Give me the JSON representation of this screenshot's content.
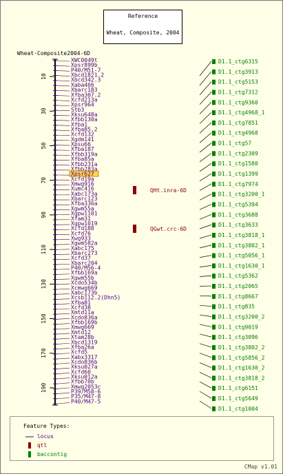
{
  "reference": {
    "label": "Reference",
    "name": "Wheat, Composite, 2004"
  },
  "map_title": "Wheat-Composite2004-6D",
  "chart_data": {
    "type": "comparative-map",
    "axis_ticks": [
      10,
      30,
      50,
      70,
      90,
      110,
      130,
      150,
      170,
      190
    ],
    "axis_range": [
      0,
      200
    ],
    "loci": [
      "XWC0049t",
      "Xpsr899b",
      "P40/M51-7",
      "Xbcd1821.2",
      "Xbcd342.3",
      "Xaba466",
      "Xbarc183",
      "Xfba307.2",
      "Xcfd213a",
      "Xpsr964",
      "Stb3",
      "Xksu648a",
      "Xfbb130a",
      "Xfba1",
      "Xfba85.2",
      "Xcfd132",
      "Xgdm141",
      "Xpsu66",
      "Xfba187",
      "Xfbb319a",
      "Xfba85a",
      "Xfbb231a",
      "Xfbb283a",
      "Xpsr627",
      "Xcfd19a",
      "Xmwg916",
      "Xumc416",
      "Xabc173a",
      "Xbarc123",
      "Xfba336a",
      "Xgwm55a",
      "Xgpw1101",
      "Xfam31",
      "Xgpw1019",
      "Xcfd188",
      "Xcfd76",
      "Xwg933",
      "Xgwm582a",
      "Xabc175",
      "Xbarc273",
      "Xcfd37",
      "Xbarc204",
      "P40/M56-4",
      "Xfbb169a",
      "Xgwm55b",
      "Xcdo534b",
      "Xcmwg669",
      "Xabc173b",
      "Xcsb112.2(Dhn5)",
      "Xfba81",
      "Xcfd38",
      "Xmtd11a",
      "Xcdo836a",
      "Xfbb169b",
      "Xmwg669",
      "Xmtd12",
      "Xtam28b",
      "Xbcd1319",
      "Xfba26a",
      "Xcfd5",
      "Xabx3317",
      "Xcdo836b",
      "Xksu027a",
      "Xcfd60",
      "Xksu012a",
      "Xfbb70b",
      "Xmwg2053c",
      "P39/M58-6",
      "P35/M47-8",
      "P40/M47-5"
    ],
    "highlighted_locus": "Xpsr627",
    "qtls": [
      {
        "name": "QHt.inra-6D"
      },
      {
        "name": "QGwt.crc-6D"
      }
    ],
    "contigs": [
      "D1.1_ctg6315",
      "D1.1_ctg3913",
      "D1.1_ctg5153",
      "D1.1_ctg7312",
      "D1.1_ctg9360",
      "D1.1_ctg4968_1",
      "D1.1_ctg7851",
      "D1.1_ctg4968",
      "D1.1_ctg57",
      "D1.1_ctg2309",
      "D1.1_ctg1580",
      "D1.1_ctg1399",
      "D1.1_ctg7974",
      "D1.1_ctg3200_1",
      "D1.1_ctg5394",
      "D1.1_ctg3688",
      "D1.1_ctg3633",
      "D1.1_ctg3818_1",
      "D1.1_ctg3802_1",
      "D1.1_ctg5056_1",
      "D1.1_ctg1630_1",
      "D1.1_ctg5362",
      "D1.1_ctg2065",
      "D1.1_ctg8667",
      "D1.1_ctg835",
      "D1.1_ctg3200_2",
      "D1.1_ctg9019",
      "D1.1_ctg3096",
      "D1.1_ctg3802_2",
      "D1.1_ctg5856_2",
      "D1.1_ctg1630_2",
      "D1.1_ctg3818_2",
      "D1.1_ctg6151",
      "D1.1_ctg5649",
      "D1.1_ctg1004"
    ],
    "colors": {
      "locus": "#4b0082",
      "qtl": "#8b0000",
      "contig": "#008000",
      "axis": "#000000",
      "highlight": "#ffd24d"
    }
  },
  "legend": {
    "title": "Feature Types:",
    "items": [
      "locus",
      "qtl",
      "baccontig"
    ]
  },
  "version": "CMap v1.01"
}
